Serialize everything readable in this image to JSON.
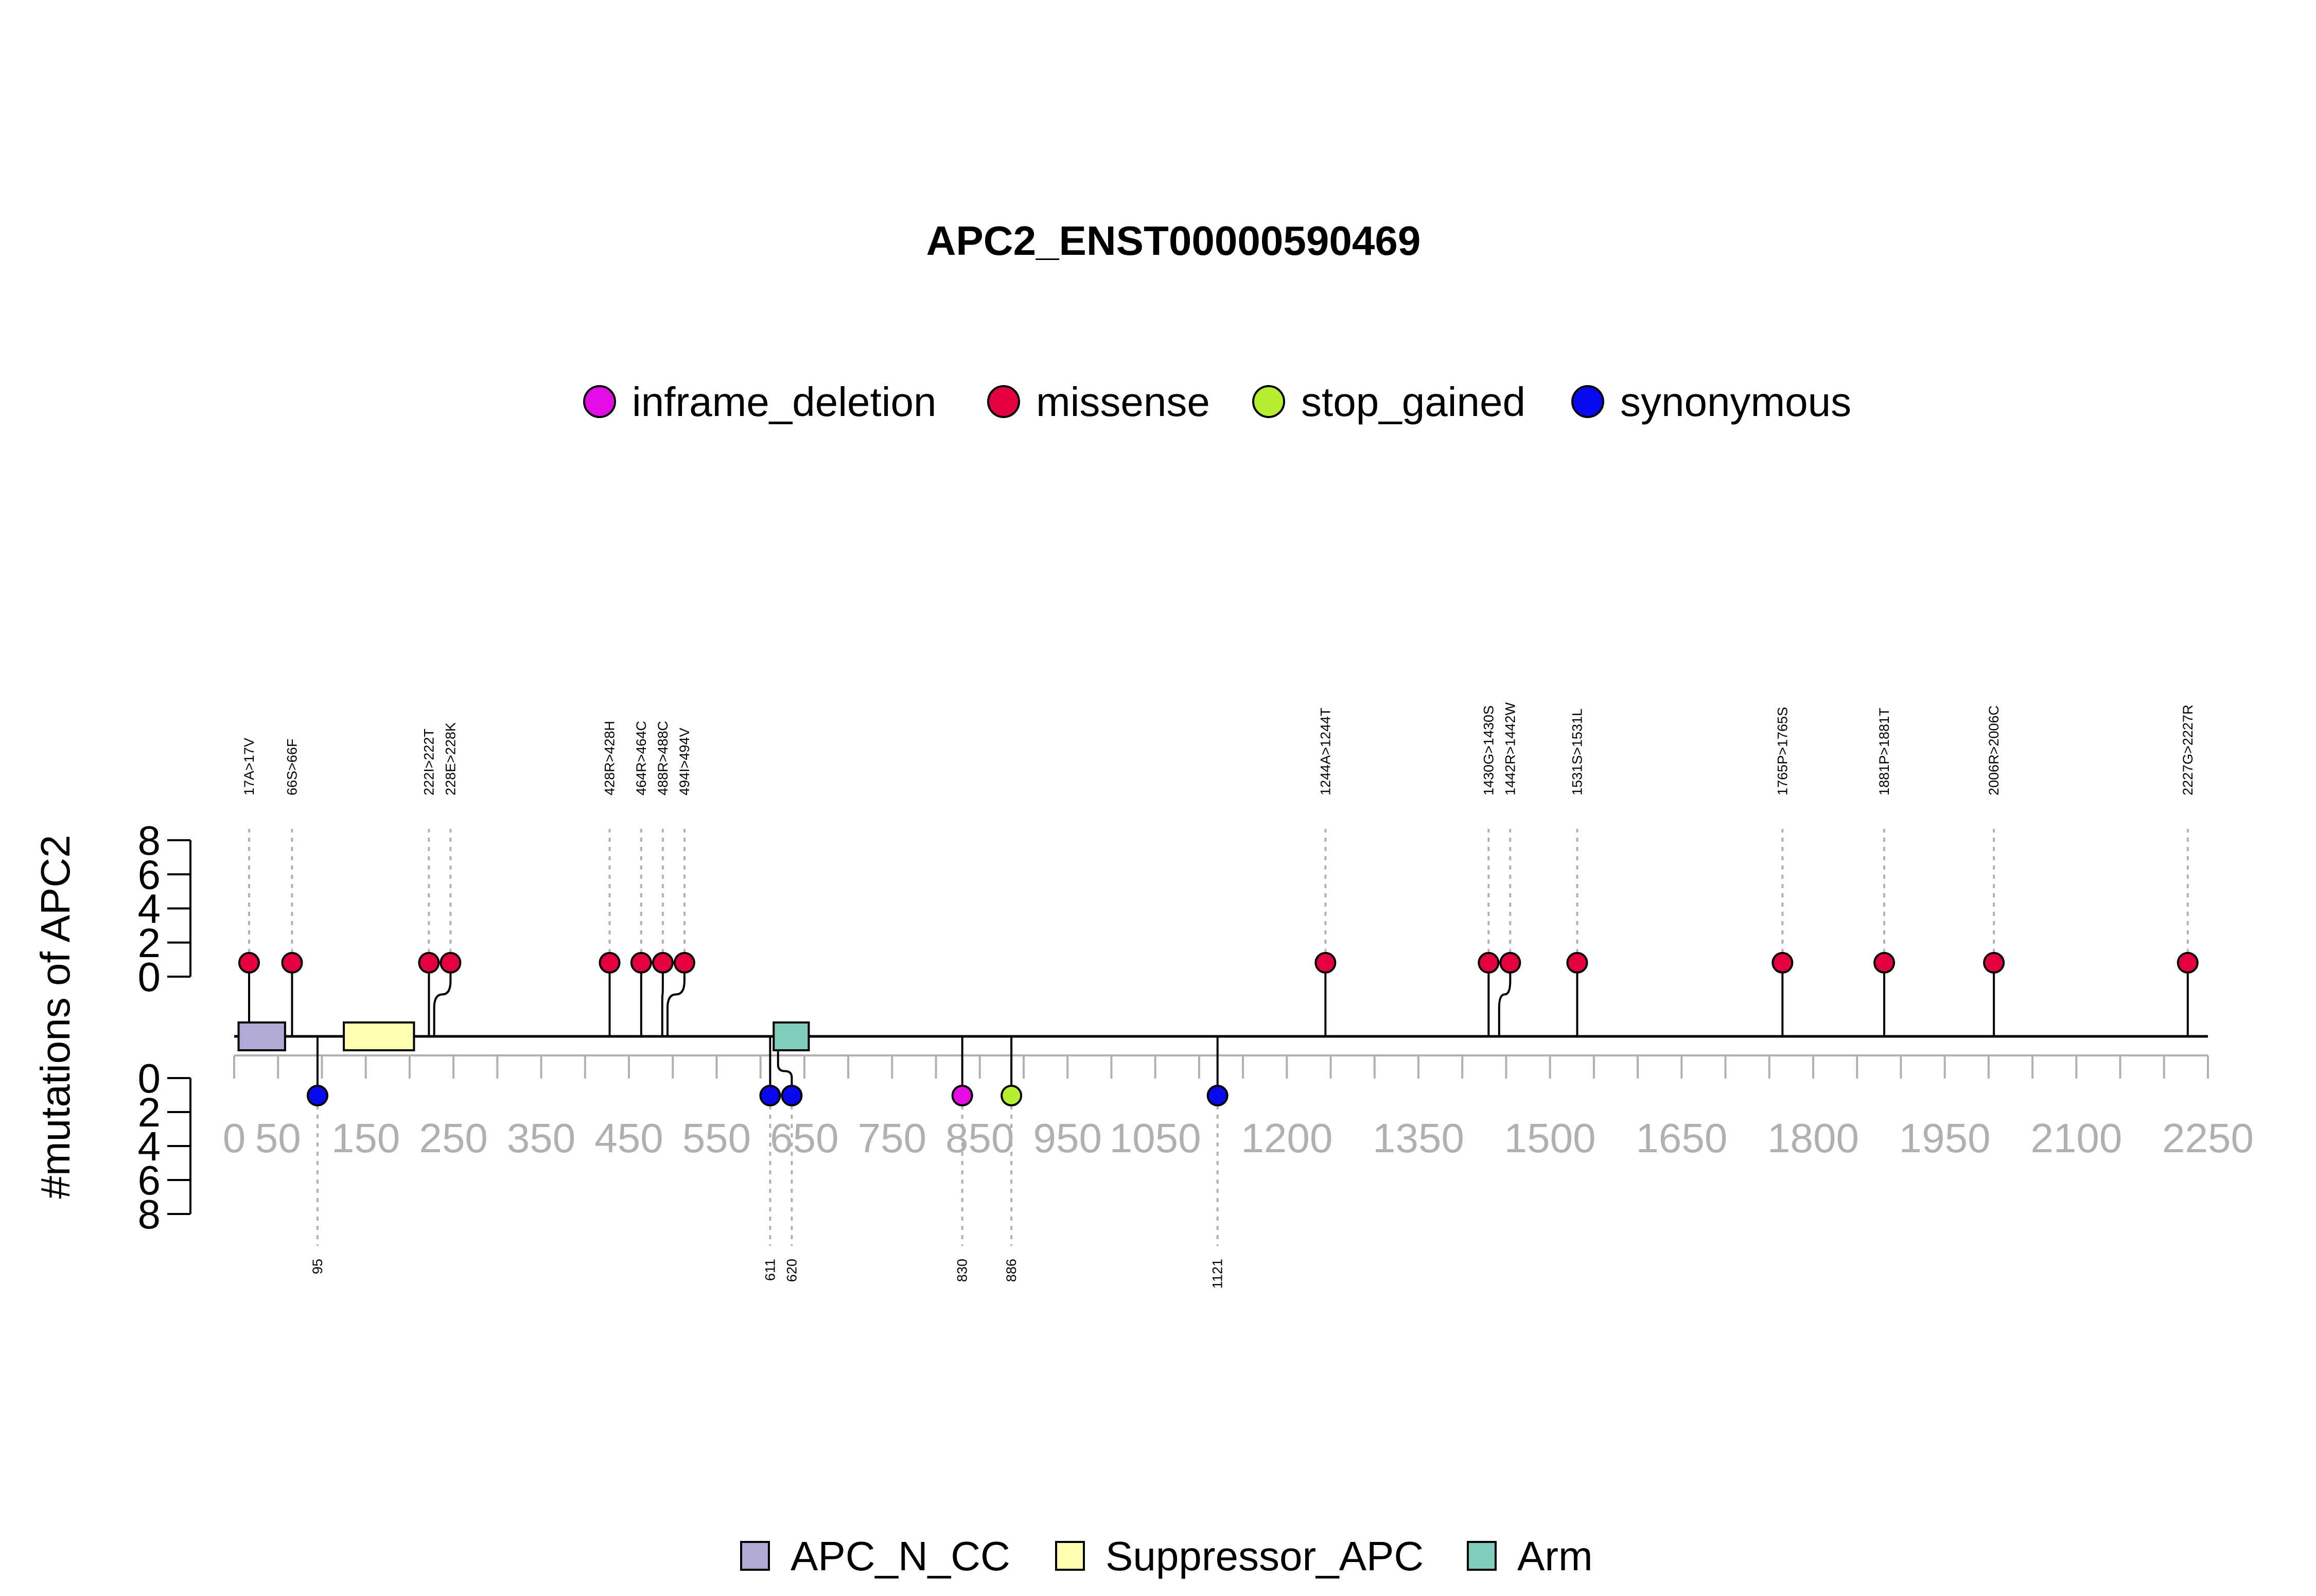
{
  "chart_data": {
    "type": "lollipop",
    "title": "APC2_ENST00000590469",
    "ylabel": "#mutations of APC2",
    "xlim": [
      0,
      2250
    ],
    "x_ticks": [
      "0",
      "50",
      "150",
      "250",
      "350",
      "450",
      "550",
      "650",
      "750",
      "850",
      "950",
      "1050",
      "1200",
      "1350",
      "1500",
      "1650",
      "1800",
      "1950",
      "2100",
      "2250"
    ],
    "y_ticks": [
      "0",
      "2",
      "4",
      "6",
      "8"
    ],
    "mutation_legend": [
      {
        "name": "inframe_deletion",
        "color": "#e40ce4"
      },
      {
        "name": "missense",
        "color": "#e4003f"
      },
      {
        "name": "stop_gained",
        "color": "#b6ee30"
      },
      {
        "name": "synonymous",
        "color": "#0909f0"
      }
    ],
    "domain_legend": [
      {
        "name": "APC_N_CC",
        "color": "#b0abd6"
      },
      {
        "name": "Suppressor_APC",
        "color": "#ffffb2"
      },
      {
        "name": "Arm",
        "color": "#7fccba"
      }
    ],
    "domains": [
      {
        "name": "APC_N_CC",
        "start": 5,
        "end": 58
      },
      {
        "name": "Suppressor_APC",
        "start": 125,
        "end": 205
      },
      {
        "name": "Arm",
        "start": 615,
        "end": 655
      }
    ],
    "mutations_top": [
      {
        "pos": 17,
        "label": "17A>17V",
        "count": 1,
        "type": "missense"
      },
      {
        "pos": 66,
        "label": "66S>66F",
        "count": 1,
        "type": "missense"
      },
      {
        "pos": 222,
        "label": "222I>222T",
        "count": 1,
        "type": "missense"
      },
      {
        "pos": 228,
        "label": "228E>228K",
        "count": 1,
        "type": "missense"
      },
      {
        "pos": 428,
        "label": "428R>428H",
        "count": 1,
        "type": "missense"
      },
      {
        "pos": 464,
        "label": "464R>464C",
        "count": 1,
        "type": "missense"
      },
      {
        "pos": 488,
        "label": "488R>488C",
        "count": 1,
        "type": "missense"
      },
      {
        "pos": 494,
        "label": "494I>494V",
        "count": 1,
        "type": "missense"
      },
      {
        "pos": 1244,
        "label": "1244A>1244T",
        "count": 1,
        "type": "missense"
      },
      {
        "pos": 1430,
        "label": "1430G>1430S",
        "count": 1,
        "type": "missense"
      },
      {
        "pos": 1442,
        "label": "1442R>1442W",
        "count": 1,
        "type": "missense"
      },
      {
        "pos": 1531,
        "label": "1531S>1531L",
        "count": 1,
        "type": "missense"
      },
      {
        "pos": 1765,
        "label": "1765P>1765S",
        "count": 1,
        "type": "missense"
      },
      {
        "pos": 1881,
        "label": "1881P>1881T",
        "count": 1,
        "type": "missense"
      },
      {
        "pos": 2006,
        "label": "2006R>2006C",
        "count": 1,
        "type": "missense"
      },
      {
        "pos": 2227,
        "label": "2227G>2227R",
        "count": 1,
        "type": "missense"
      }
    ],
    "mutations_bottom": [
      {
        "pos": 95,
        "label": "95",
        "count": 1,
        "type": "synonymous"
      },
      {
        "pos": 611,
        "label": "611",
        "count": 1,
        "type": "synonymous"
      },
      {
        "pos": 620,
        "label": "620",
        "count": 1,
        "type": "synonymous"
      },
      {
        "pos": 830,
        "label": "830",
        "count": 1,
        "type": "inframe_deletion"
      },
      {
        "pos": 886,
        "label": "886",
        "count": 1,
        "type": "stop_gained"
      },
      {
        "pos": 1121,
        "label": "1121",
        "count": 1,
        "type": "synonymous"
      }
    ]
  }
}
